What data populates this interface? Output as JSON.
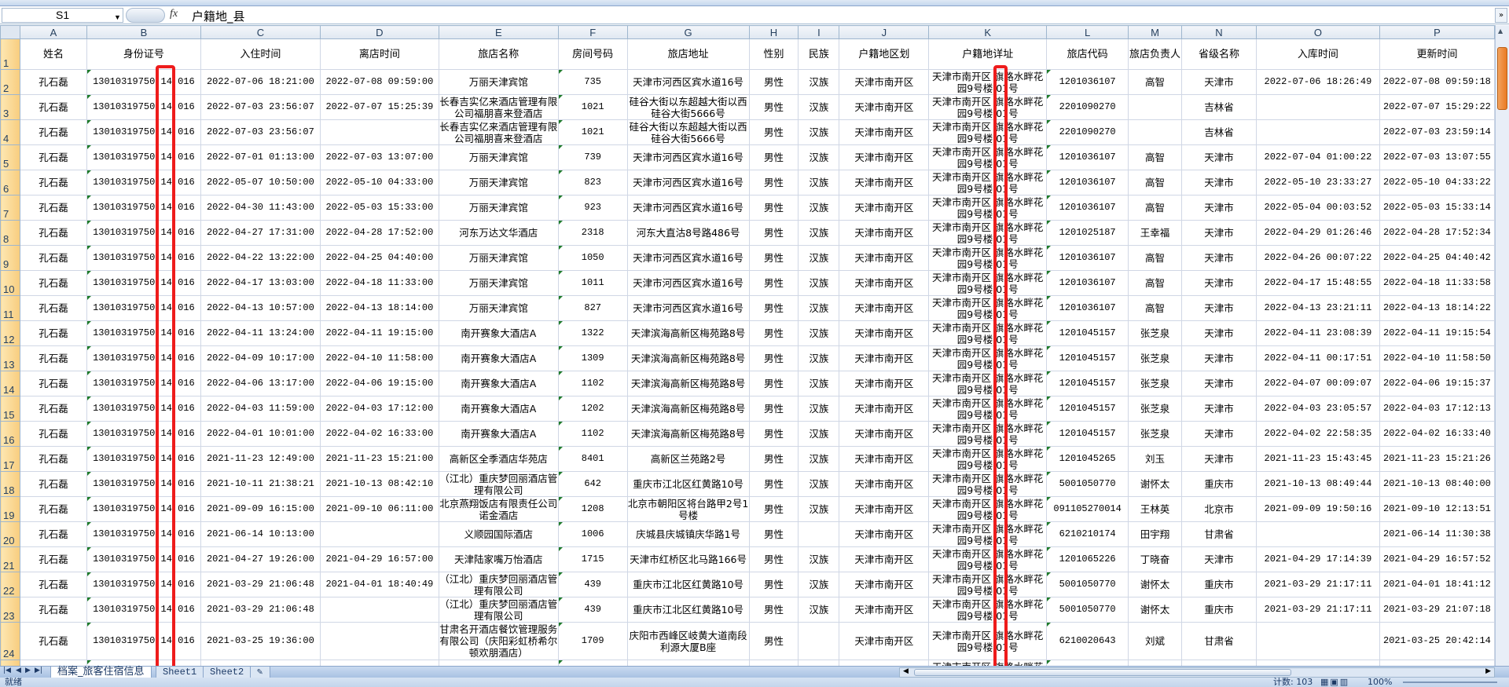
{
  "formula_bar": {
    "name_box": "S1",
    "fx_label": "fx",
    "formula": "户籍地_县"
  },
  "columns": [
    "A",
    "B",
    "C",
    "D",
    "E",
    "F",
    "G",
    "H",
    "I",
    "J",
    "K",
    "L",
    "M",
    "N",
    "O",
    "P"
  ],
  "headers": [
    "姓名",
    "身份证号",
    "入住时间",
    "离店时间",
    "旅店名称",
    "房间号码",
    "旅店地址",
    "性别",
    "民族",
    "户籍地区划",
    "户籍地详址",
    "旅店代码",
    "旅店负责人",
    "省级名称",
    "入库时间",
    "更新时间"
  ],
  "rows": [
    [
      "孔石磊",
      "13010319750 14 016",
      "2022-07-06 18:21:00",
      "2022-07-08 09:59:00",
      "万丽天津宾馆",
      "735",
      "天津市河西区宾水道16号",
      "男性",
      "汉族",
      "天津市南开区",
      "天津市南开区 旗路水畔花园9号楼 01号",
      "1201036107",
      "高智",
      "天津市",
      "2022-07-06 18:26:49",
      "2022-07-08 09:59:18"
    ],
    [
      "孔石磊",
      "13010319750 14 016",
      "2022-07-03 23:56:07",
      "2022-07-07 15:25:39",
      "长春吉实亿来酒店管理有限公司福朋喜来登酒店",
      "1021",
      "硅谷大街以东超越大街以西硅谷大街5666号",
      "男性",
      "汉族",
      "天津市南开区",
      "天津市南开区 旗路水畔花园9号楼 01号",
      "2201090270",
      "",
      "吉林省",
      "",
      "2022-07-07 15:29:22"
    ],
    [
      "孔石磊",
      "13010319750 14 016",
      "2022-07-03 23:56:07",
      "",
      "长春吉实亿来酒店管理有限公司福朋喜来登酒店",
      "1021",
      "硅谷大街以东超越大街以西硅谷大街5666号",
      "男性",
      "汉族",
      "天津市南开区",
      "天津市南开区 旗路水畔花园9号楼 01号",
      "2201090270",
      "",
      "吉林省",
      "",
      "2022-07-03 23:59:14"
    ],
    [
      "孔石磊",
      "13010319750 14 016",
      "2022-07-01 01:13:00",
      "2022-07-03 13:07:00",
      "万丽天津宾馆",
      "739",
      "天津市河西区宾水道16号",
      "男性",
      "汉族",
      "天津市南开区",
      "天津市南开区 旗路水畔花园9号楼 01号",
      "1201036107",
      "高智",
      "天津市",
      "2022-07-04 01:00:22",
      "2022-07-03 13:07:55"
    ],
    [
      "孔石磊",
      "13010319750 14 016",
      "2022-05-07 10:50:00",
      "2022-05-10 04:33:00",
      "万丽天津宾馆",
      "823",
      "天津市河西区宾水道16号",
      "男性",
      "汉族",
      "天津市南开区",
      "天津市南开区 旗路水畔花园9号楼 01号",
      "1201036107",
      "高智",
      "天津市",
      "2022-05-10 23:33:27",
      "2022-05-10 04:33:22"
    ],
    [
      "孔石磊",
      "13010319750 14 016",
      "2022-04-30 11:43:00",
      "2022-05-03 15:33:00",
      "万丽天津宾馆",
      "923",
      "天津市河西区宾水道16号",
      "男性",
      "汉族",
      "天津市南开区",
      "天津市南开区 旗路水畔花园9号楼 01号",
      "1201036107",
      "高智",
      "天津市",
      "2022-05-04 00:03:52",
      "2022-05-03 15:33:14"
    ],
    [
      "孔石磊",
      "13010319750 14 016",
      "2022-04-27 17:31:00",
      "2022-04-28 17:52:00",
      "河东万达文华酒店",
      "2318",
      "河东大直沽8号路486号",
      "男性",
      "汉族",
      "天津市南开区",
      "天津市南开区 旗路水畔花园9号楼 01号",
      "1201025187",
      "王幸福",
      "天津市",
      "2022-04-29 01:26:46",
      "2022-04-28 17:52:34"
    ],
    [
      "孔石磊",
      "13010319750 14 016",
      "2022-04-22 13:22:00",
      "2022-04-25 04:40:00",
      "万丽天津宾馆",
      "1050",
      "天津市河西区宾水道16号",
      "男性",
      "汉族",
      "天津市南开区",
      "天津市南开区 旗路水畔花园9号楼 01号",
      "1201036107",
      "高智",
      "天津市",
      "2022-04-26 00:07:22",
      "2022-04-25 04:40:42"
    ],
    [
      "孔石磊",
      "13010319750 14 016",
      "2022-04-17 13:03:00",
      "2022-04-18 11:33:00",
      "万丽天津宾馆",
      "1011",
      "天津市河西区宾水道16号",
      "男性",
      "汉族",
      "天津市南开区",
      "天津市南开区 旗路水畔花园9号楼 01号",
      "1201036107",
      "高智",
      "天津市",
      "2022-04-17 15:48:55",
      "2022-04-18 11:33:58"
    ],
    [
      "孔石磊",
      "13010319750 14 016",
      "2022-04-13 10:57:00",
      "2022-04-13 18:14:00",
      "万丽天津宾馆",
      "827",
      "天津市河西区宾水道16号",
      "男性",
      "汉族",
      "天津市南开区",
      "天津市南开区 旗路水畔花园9号楼 01号",
      "1201036107",
      "高智",
      "天津市",
      "2022-04-13 23:21:11",
      "2022-04-13 18:14:22"
    ],
    [
      "孔石磊",
      "13010319750 14 016",
      "2022-04-11 13:24:00",
      "2022-04-11 19:15:00",
      "南开赛象大酒店A",
      "1322",
      "天津滨海高新区梅苑路8号",
      "男性",
      "汉族",
      "天津市南开区",
      "天津市南开区 旗路水畔花园9号楼 01号",
      "1201045157",
      "张芝泉",
      "天津市",
      "2022-04-11 23:08:39",
      "2022-04-11 19:15:54"
    ],
    [
      "孔石磊",
      "13010319750 14 016",
      "2022-04-09 10:17:00",
      "2022-04-10 11:58:00",
      "南开赛象大酒店A",
      "1309",
      "天津滨海高新区梅苑路8号",
      "男性",
      "汉族",
      "天津市南开区",
      "天津市南开区 旗路水畔花园9号楼 01号",
      "1201045157",
      "张芝泉",
      "天津市",
      "2022-04-11 00:17:51",
      "2022-04-10 11:58:50"
    ],
    [
      "孔石磊",
      "13010319750 14 016",
      "2022-04-06 13:17:00",
      "2022-04-06 19:15:00",
      "南开赛象大酒店A",
      "1102",
      "天津滨海高新区梅苑路8号",
      "男性",
      "汉族",
      "天津市南开区",
      "天津市南开区 旗路水畔花园9号楼 01号",
      "1201045157",
      "张芝泉",
      "天津市",
      "2022-04-07 00:09:07",
      "2022-04-06 19:15:37"
    ],
    [
      "孔石磊",
      "13010319750 14 016",
      "2022-04-03 11:59:00",
      "2022-04-03 17:12:00",
      "南开赛象大酒店A",
      "1202",
      "天津滨海高新区梅苑路8号",
      "男性",
      "汉族",
      "天津市南开区",
      "天津市南开区 旗路水畔花园9号楼 01号",
      "1201045157",
      "张芝泉",
      "天津市",
      "2022-04-03 23:05:57",
      "2022-04-03 17:12:13"
    ],
    [
      "孔石磊",
      "13010319750 14 016",
      "2022-04-01 10:01:00",
      "2022-04-02 16:33:00",
      "南开赛象大酒店A",
      "1102",
      "天津滨海高新区梅苑路8号",
      "男性",
      "汉族",
      "天津市南开区",
      "天津市南开区 旗路水畔花园9号楼 01号",
      "1201045157",
      "张芝泉",
      "天津市",
      "2022-04-02 22:58:35",
      "2022-04-02 16:33:40"
    ],
    [
      "孔石磊",
      "13010319750 14 016",
      "2021-11-23 12:49:00",
      "2021-11-23 15:21:00",
      "高新区全季酒店华苑店",
      "8401",
      "高新区兰苑路2号",
      "男性",
      "汉族",
      "天津市南开区",
      "天津市南开区 旗路水畔花园9号楼 01号",
      "1201045265",
      "刘玉",
      "天津市",
      "2021-11-23 15:43:45",
      "2021-11-23 15:21:26"
    ],
    [
      "孔石磊",
      "13010319750 14 016",
      "2021-10-11 21:38:21",
      "2021-10-13 08:42:10",
      "（江北）重庆梦回丽酒店管理有限公司",
      "642",
      "重庆市江北区红黄路10号",
      "男性",
      "汉族",
      "天津市南开区",
      "天津市南开区 旗路水畔花园9号楼 01号",
      "5001050770",
      "谢怀太",
      "重庆市",
      "2021-10-13 08:49:44",
      "2021-10-13 08:40:00"
    ],
    [
      "孔石磊",
      "13010319750 14 016",
      "2021-09-09 16:15:00",
      "2021-09-10 06:11:00",
      "北京燕翔饭店有限责任公司诺金酒店",
      "1208",
      "北京市朝阳区将台路甲2号1号楼",
      "男性",
      "汉族",
      "天津市南开区",
      "天津市南开区 旗路水畔花园9号楼 01号",
      "091105270014",
      "王林英",
      "北京市",
      "2021-09-09 19:50:16",
      "2021-09-10 12:13:51"
    ],
    [
      "孔石磊",
      "13010319750 14 016",
      "2021-06-14 10:13:00",
      "",
      "义顺园国际酒店",
      "1006",
      "庆城县庆城镇庆华路1号",
      "男性",
      "",
      "天津市南开区",
      "天津市南开区 旗路水畔花园9号楼 01号",
      "6210210174",
      "田宇翔",
      "甘肃省",
      "",
      "2021-06-14 11:30:38"
    ],
    [
      "孔石磊",
      "13010319750 14 016",
      "2021-04-27 19:26:00",
      "2021-04-29 16:57:00",
      "天津陆家嘴万怡酒店",
      "1715",
      "天津市红桥区北马路166号",
      "男性",
      "汉族",
      "天津市南开区",
      "天津市南开区 旗路水畔花园9号楼 01号",
      "1201065226",
      "丁晓奋",
      "天津市",
      "2021-04-29 17:14:39",
      "2021-04-29 16:57:52"
    ],
    [
      "孔石磊",
      "13010319750 14 016",
      "2021-03-29 21:06:48",
      "2021-04-01 18:40:49",
      "（江北）重庆梦回丽酒店管理有限公司",
      "439",
      "重庆市江北区红黄路10号",
      "男性",
      "汉族",
      "天津市南开区",
      "天津市南开区 旗路水畔花园9号楼 01号",
      "5001050770",
      "谢怀太",
      "重庆市",
      "2021-03-29 21:17:11",
      "2021-04-01 18:41:12"
    ],
    [
      "孔石磊",
      "13010319750 14 016",
      "2021-03-29 21:06:48",
      "",
      "（江北）重庆梦回丽酒店管理有限公司",
      "439",
      "重庆市江北区红黄路10号",
      "男性",
      "汉族",
      "天津市南开区",
      "天津市南开区 旗路水畔花园9号楼 01号",
      "5001050770",
      "谢怀太",
      "重庆市",
      "2021-03-29 21:17:11",
      "2021-03-29 21:07:18"
    ],
    [
      "孔石磊",
      "13010319750 14 016",
      "2021-03-25 19:36:00",
      "",
      "甘肃名开酒店餐饮管理服务有限公司（庆阳彩虹桥希尔顿欢朋酒店）",
      "1709",
      "庆阳市西峰区岐黄大道南段利源大厦B座",
      "男性",
      "",
      "天津市南开区",
      "天津市南开区 旗路水畔花园9号楼 01号",
      "6210020643",
      "刘斌",
      "甘肃省",
      "",
      "2021-03-25 20:42:14"
    ],
    [
      "",
      "",
      "",
      "",
      "",
      "",
      "",
      "",
      "",
      "",
      "天津市南开区 旗路水畔花园9号楼 01号",
      "",
      "",
      "",
      "",
      ""
    ]
  ],
  "sheet_tabs": [
    "档案_旅客住宿信息",
    "Sheet1",
    "Sheet2"
  ],
  "status": {
    "ready": "就绪",
    "count": "计数: 103",
    "zoom": "100%"
  },
  "colors": {
    "highlight_box": "#ee1c1c",
    "row_header": "#f8cd7e",
    "scroll_thumb": "#ea7a23"
  }
}
